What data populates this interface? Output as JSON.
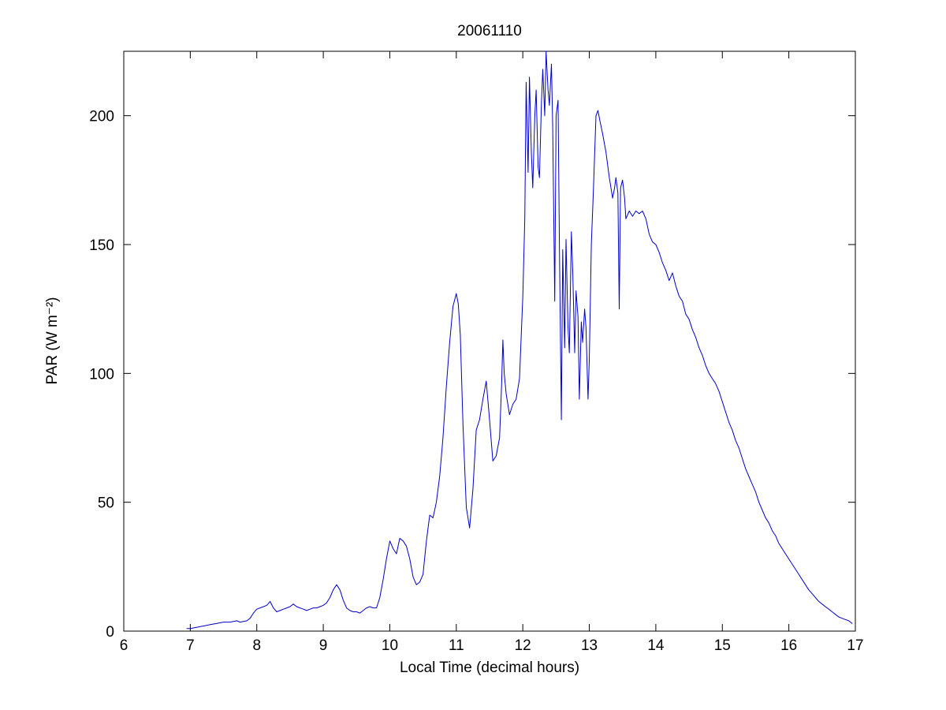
{
  "figure": {
    "background": "#ffffff",
    "box_color": "#000000"
  },
  "chart_data": {
    "type": "line",
    "title": "20061110",
    "xlabel": "Local Time (decimal hours)",
    "ylabel": "PAR (W m⁻²)",
    "xlim": [
      6,
      17
    ],
    "ylim": [
      0,
      225
    ],
    "xticks": [
      6,
      7,
      8,
      9,
      10,
      11,
      12,
      13,
      14,
      15,
      16,
      17
    ],
    "yticks": [
      0,
      50,
      100,
      150,
      200
    ],
    "grid": false,
    "legend": null,
    "line_color": "#0000CC",
    "series": [
      {
        "name": "PAR",
        "points": [
          [
            6.95,
            1
          ],
          [
            7.0,
            1
          ],
          [
            7.1,
            1.5
          ],
          [
            7.2,
            2
          ],
          [
            7.3,
            2.5
          ],
          [
            7.4,
            3
          ],
          [
            7.5,
            3.5
          ],
          [
            7.6,
            3.5
          ],
          [
            7.7,
            4
          ],
          [
            7.75,
            3.5
          ],
          [
            7.85,
            4
          ],
          [
            7.9,
            5
          ],
          [
            7.95,
            7
          ],
          [
            8.0,
            8.5
          ],
          [
            8.05,
            9
          ],
          [
            8.1,
            9.5
          ],
          [
            8.15,
            10
          ],
          [
            8.2,
            11.5
          ],
          [
            8.25,
            9
          ],
          [
            8.3,
            7.5
          ],
          [
            8.35,
            8
          ],
          [
            8.4,
            8.5
          ],
          [
            8.45,
            9
          ],
          [
            8.5,
            9.5
          ],
          [
            8.55,
            10.5
          ],
          [
            8.6,
            9.5
          ],
          [
            8.65,
            9
          ],
          [
            8.7,
            8.5
          ],
          [
            8.75,
            8
          ],
          [
            8.8,
            8.5
          ],
          [
            8.85,
            9
          ],
          [
            8.9,
            9
          ],
          [
            8.95,
            9.5
          ],
          [
            9.0,
            10
          ],
          [
            9.05,
            11
          ],
          [
            9.1,
            13
          ],
          [
            9.15,
            16
          ],
          [
            9.2,
            18
          ],
          [
            9.25,
            16
          ],
          [
            9.3,
            12
          ],
          [
            9.35,
            9
          ],
          [
            9.4,
            8
          ],
          [
            9.45,
            7.5
          ],
          [
            9.5,
            7.5
          ],
          [
            9.55,
            7
          ],
          [
            9.6,
            8
          ],
          [
            9.65,
            9
          ],
          [
            9.7,
            9.5
          ],
          [
            9.75,
            9
          ],
          [
            9.8,
            9
          ],
          [
            9.85,
            13
          ],
          [
            9.9,
            20
          ],
          [
            9.95,
            28
          ],
          [
            10.0,
            35
          ],
          [
            10.05,
            32
          ],
          [
            10.1,
            30
          ],
          [
            10.15,
            36
          ],
          [
            10.2,
            35
          ],
          [
            10.25,
            33
          ],
          [
            10.3,
            28
          ],
          [
            10.35,
            21
          ],
          [
            10.4,
            18
          ],
          [
            10.45,
            19
          ],
          [
            10.5,
            22
          ],
          [
            10.55,
            35
          ],
          [
            10.6,
            45
          ],
          [
            10.65,
            44
          ],
          [
            10.7,
            50
          ],
          [
            10.75,
            60
          ],
          [
            10.8,
            75
          ],
          [
            10.85,
            95
          ],
          [
            10.9,
            112
          ],
          [
            10.95,
            126
          ],
          [
            11.0,
            131
          ],
          [
            11.03,
            127
          ],
          [
            11.06,
            115
          ],
          [
            11.1,
            80
          ],
          [
            11.15,
            48
          ],
          [
            11.2,
            40
          ],
          [
            11.25,
            55
          ],
          [
            11.3,
            78
          ],
          [
            11.35,
            82
          ],
          [
            11.4,
            90
          ],
          [
            11.45,
            97
          ],
          [
            11.5,
            82
          ],
          [
            11.55,
            66
          ],
          [
            11.6,
            68
          ],
          [
            11.65,
            75
          ],
          [
            11.68,
            95
          ],
          [
            11.7,
            113
          ],
          [
            11.72,
            100
          ],
          [
            11.75,
            92
          ],
          [
            11.8,
            84
          ],
          [
            11.85,
            88
          ],
          [
            11.9,
            90
          ],
          [
            11.95,
            98
          ],
          [
            12.0,
            130
          ],
          [
            12.03,
            160
          ],
          [
            12.05,
            213
          ],
          [
            12.08,
            178
          ],
          [
            12.1,
            215
          ],
          [
            12.13,
            185
          ],
          [
            12.15,
            172
          ],
          [
            12.18,
            200
          ],
          [
            12.2,
            210
          ],
          [
            12.23,
            180
          ],
          [
            12.25,
            176
          ],
          [
            12.28,
            205
          ],
          [
            12.3,
            218
          ],
          [
            12.33,
            200
          ],
          [
            12.35,
            225
          ],
          [
            12.38,
            210
          ],
          [
            12.4,
            204
          ],
          [
            12.43,
            220
          ],
          [
            12.45,
            196
          ],
          [
            12.48,
            128
          ],
          [
            12.5,
            200
          ],
          [
            12.53,
            206
          ],
          [
            12.55,
            150
          ],
          [
            12.58,
            82
          ],
          [
            12.6,
            148
          ],
          [
            12.63,
            110
          ],
          [
            12.65,
            152
          ],
          [
            12.68,
            118
          ],
          [
            12.7,
            108
          ],
          [
            12.73,
            155
          ],
          [
            12.75,
            140
          ],
          [
            12.78,
            108
          ],
          [
            12.8,
            132
          ],
          [
            12.83,
            122
          ],
          [
            12.85,
            90
          ],
          [
            12.88,
            120
          ],
          [
            12.9,
            112
          ],
          [
            12.93,
            125
          ],
          [
            12.95,
            118
          ],
          [
            12.98,
            90
          ],
          [
            13.0,
            105
          ],
          [
            13.03,
            150
          ],
          [
            13.06,
            170
          ],
          [
            13.1,
            200
          ],
          [
            13.13,
            202
          ],
          [
            13.16,
            198
          ],
          [
            13.2,
            193
          ],
          [
            13.25,
            186
          ],
          [
            13.3,
            176
          ],
          [
            13.35,
            168
          ],
          [
            13.38,
            172
          ],
          [
            13.4,
            176
          ],
          [
            13.43,
            170
          ],
          [
            13.45,
            125
          ],
          [
            13.47,
            172
          ],
          [
            13.5,
            175
          ],
          [
            13.53,
            168
          ],
          [
            13.55,
            160
          ],
          [
            13.6,
            163
          ],
          [
            13.65,
            161
          ],
          [
            13.7,
            163
          ],
          [
            13.75,
            162
          ],
          [
            13.8,
            163
          ],
          [
            13.85,
            160
          ],
          [
            13.9,
            154
          ],
          [
            13.95,
            151
          ],
          [
            14.0,
            150
          ],
          [
            14.05,
            147
          ],
          [
            14.1,
            143
          ],
          [
            14.15,
            140
          ],
          [
            14.2,
            136
          ],
          [
            14.25,
            139
          ],
          [
            14.3,
            134
          ],
          [
            14.35,
            130
          ],
          [
            14.4,
            128
          ],
          [
            14.45,
            123
          ],
          [
            14.5,
            121
          ],
          [
            14.55,
            117
          ],
          [
            14.6,
            114
          ],
          [
            14.65,
            110
          ],
          [
            14.7,
            107
          ],
          [
            14.75,
            103
          ],
          [
            14.8,
            100
          ],
          [
            14.85,
            98
          ],
          [
            14.9,
            96
          ],
          [
            14.95,
            93
          ],
          [
            15.0,
            89
          ],
          [
            15.05,
            85
          ],
          [
            15.1,
            81
          ],
          [
            15.15,
            78
          ],
          [
            15.2,
            74
          ],
          [
            15.25,
            71
          ],
          [
            15.3,
            67
          ],
          [
            15.35,
            63
          ],
          [
            15.4,
            60
          ],
          [
            15.45,
            57
          ],
          [
            15.5,
            54
          ],
          [
            15.55,
            50
          ],
          [
            15.6,
            47
          ],
          [
            15.65,
            44
          ],
          [
            15.7,
            42
          ],
          [
            15.75,
            39
          ],
          [
            15.8,
            37
          ],
          [
            15.85,
            34
          ],
          [
            15.9,
            32
          ],
          [
            15.95,
            30
          ],
          [
            16.0,
            28
          ],
          [
            16.05,
            26
          ],
          [
            16.1,
            24
          ],
          [
            16.15,
            22
          ],
          [
            16.2,
            20
          ],
          [
            16.25,
            18
          ],
          [
            16.3,
            16
          ],
          [
            16.35,
            14.5
          ],
          [
            16.4,
            13
          ],
          [
            16.45,
            11.5
          ],
          [
            16.5,
            10.5
          ],
          [
            16.55,
            9.5
          ],
          [
            16.6,
            8.5
          ],
          [
            16.65,
            7.5
          ],
          [
            16.7,
            6.5
          ],
          [
            16.75,
            5.5
          ],
          [
            16.8,
            5
          ],
          [
            16.85,
            4.5
          ],
          [
            16.9,
            4
          ],
          [
            16.95,
            3
          ]
        ]
      }
    ]
  }
}
